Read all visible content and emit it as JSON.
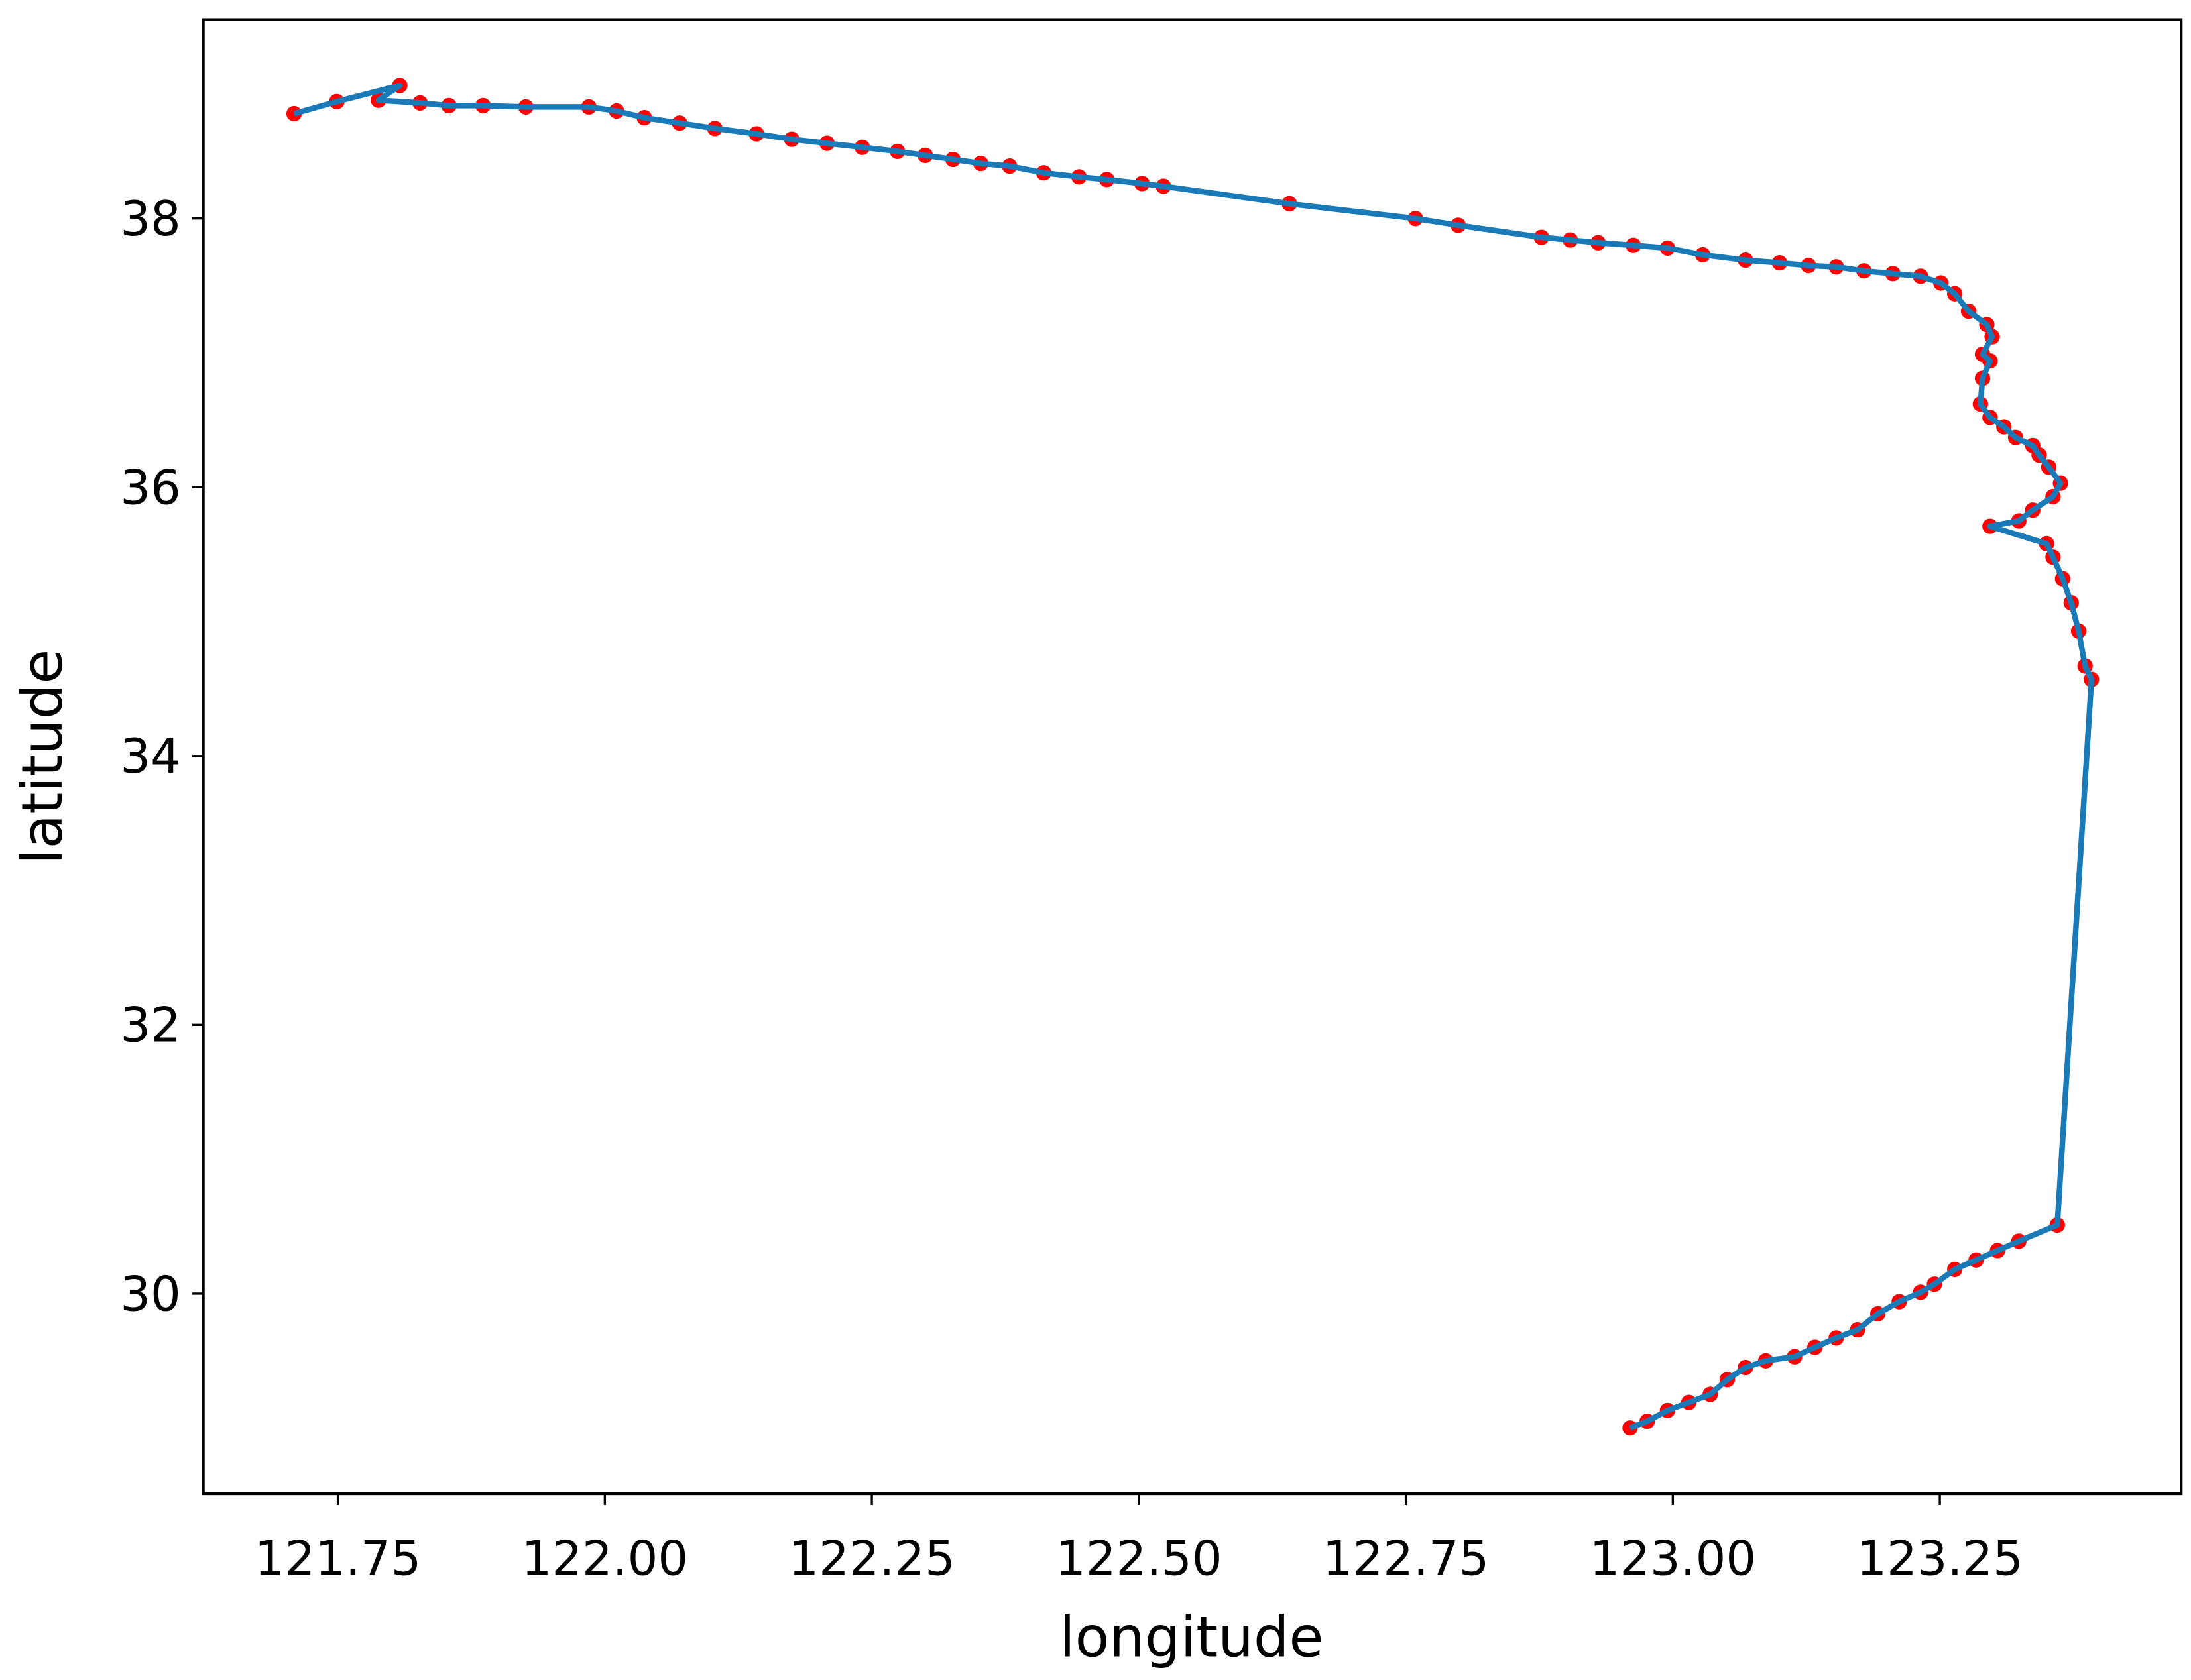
{
  "chart_data": {
    "type": "line",
    "xlabel": "longitude",
    "ylabel": "latitude",
    "line_color": "#1a7ab8",
    "marker_color": "#ff0000",
    "xlim": [
      121.624,
      123.476
    ],
    "ylim": [
      28.51,
      39.48
    ],
    "xticks": [
      121.75,
      {
        "value": 122,
        "label": "122.00"
      },
      122.25,
      {
        "value": 122.5,
        "label": "122.50"
      },
      122.75,
      {
        "value": 123,
        "label": "123.00"
      },
      123.25
    ],
    "yticks": [
      30,
      32,
      34,
      36,
      38
    ],
    "x": [
      122.96,
      122.976,
      122.995,
      123.015,
      123.035,
      123.051,
      123.068,
      123.087,
      123.114,
      123.133,
      123.153,
      123.173,
      123.192,
      123.212,
      123.232,
      123.245,
      123.264,
      123.284,
      123.304,
      123.324,
      123.36,
      123.392,
      123.386,
      123.38,
      123.373,
      123.365,
      123.356,
      123.35,
      123.297,
      123.324,
      123.337,
      123.356,
      123.363,
      123.352,
      123.343,
      123.337,
      123.321,
      123.31,
      123.297,
      123.288,
      123.29,
      123.297,
      123.29,
      123.299,
      123.294,
      123.277,
      123.264,
      123.251,
      123.232,
      123.206,
      123.179,
      123.153,
      123.127,
      123.1,
      123.068,
      123.028,
      122.995,
      122.963,
      122.93,
      122.904,
      122.877,
      122.799,
      122.759,
      122.641,
      122.523,
      122.503,
      122.47,
      122.444,
      122.411,
      122.379,
      122.352,
      122.326,
      122.3,
      122.274,
      122.241,
      122.208,
      122.175,
      122.142,
      122.103,
      122.07,
      122.037,
      122.011,
      121.985,
      121.926,
      121.886,
      121.854,
      121.827,
      121.788,
      121.808,
      121.749,
      121.709
    ],
    "y": [
      29.0,
      29.05,
      29.13,
      29.19,
      29.25,
      29.36,
      29.45,
      29.5,
      29.53,
      29.6,
      29.67,
      29.73,
      29.85,
      29.94,
      30.01,
      30.07,
      30.18,
      30.25,
      30.32,
      30.39,
      30.51,
      34.57,
      34.67,
      34.93,
      35.14,
      35.32,
      35.48,
      35.58,
      35.71,
      35.75,
      35.83,
      35.93,
      36.03,
      36.15,
      36.24,
      36.31,
      36.37,
      36.45,
      36.52,
      36.62,
      36.81,
      36.94,
      36.99,
      37.12,
      37.21,
      37.31,
      37.44,
      37.52,
      37.57,
      37.59,
      37.61,
      37.64,
      37.65,
      37.67,
      37.69,
      37.73,
      37.78,
      37.8,
      37.82,
      37.84,
      37.86,
      37.95,
      38.0,
      38.11,
      38.24,
      38.26,
      38.29,
      38.31,
      38.34,
      38.39,
      38.41,
      38.44,
      38.47,
      38.5,
      38.53,
      38.56,
      38.59,
      38.63,
      38.67,
      38.71,
      38.75,
      38.8,
      38.83,
      38.83,
      38.84,
      38.84,
      38.86,
      38.88,
      38.99,
      38.87,
      38.78
    ]
  }
}
